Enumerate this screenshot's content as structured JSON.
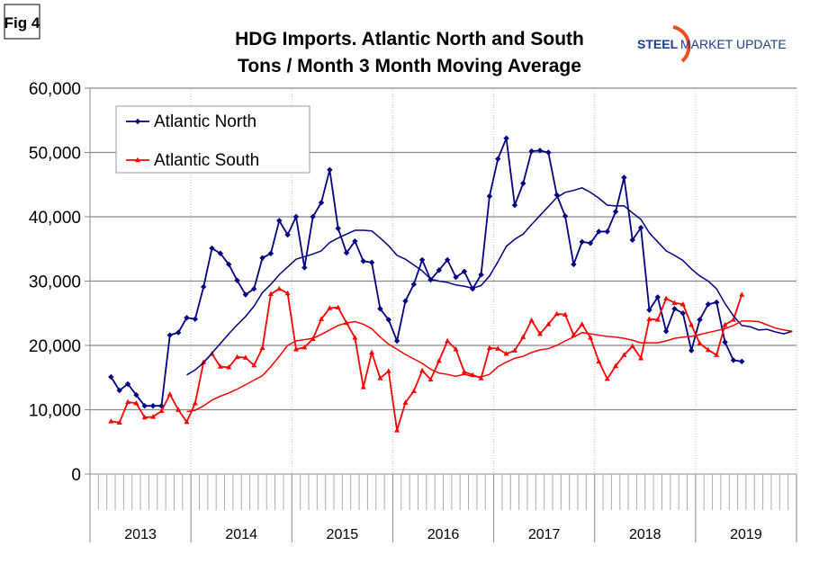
{
  "fig_label": "Fig 4",
  "logo": {
    "word1": "STEEL",
    "word2": "MARKET UPDATE",
    "arc_color": "#e8501e",
    "text_color": "#1b3d8f"
  },
  "chart_data": {
    "type": "line",
    "title": [
      "HDG Imports. Atlantic North and South",
      "Tons / Month 3 Month Moving Average"
    ],
    "xlabel": "",
    "ylabel": "",
    "x_unit": "month",
    "x_range": [
      "2013-01",
      "2019-12"
    ],
    "year_labels": [
      "2013",
      "2014",
      "2015",
      "2016",
      "2017",
      "2018",
      "2019"
    ],
    "ylim": [
      0,
      60000
    ],
    "y_ticks": [
      0,
      10000,
      20000,
      30000,
      40000,
      50000,
      60000
    ],
    "y_tick_labels": [
      "0",
      "10,000",
      "20,000",
      "30,000",
      "40,000",
      "50,000",
      "60,000"
    ],
    "grid": "horizontal",
    "legend": {
      "placement": "top-left",
      "entries": [
        "Atlantic North",
        "Atlantic South"
      ]
    },
    "series": [
      {
        "name": "Atlantic North",
        "color": "#000080",
        "marker": "diamond",
        "start": "2013-03",
        "values": [
          15100,
          13000,
          14000,
          12300,
          10600,
          10600,
          10600,
          21600,
          22000,
          24300,
          24100,
          29100,
          35100,
          34300,
          32600,
          30100,
          27900,
          28800,
          33600,
          34300,
          39400,
          37200,
          40000,
          32100,
          40000,
          42200,
          47300,
          38200,
          34400,
          36200,
          33100,
          32900,
          25700,
          24000,
          20700,
          26900,
          29500,
          33300,
          30200,
          31700,
          33300,
          30600,
          31500,
          28800,
          31000,
          43200,
          49000,
          52200,
          41800,
          45200,
          50200,
          50300,
          50000,
          43400,
          40100,
          32600,
          36100,
          35900,
          37700,
          37700,
          40800,
          46100,
          36400,
          38300,
          25500,
          27500,
          22200,
          25700,
          25000,
          19200,
          24000,
          26400,
          26700,
          20500,
          17700,
          17500
        ]
      },
      {
        "name": "Atlantic South",
        "color": "#ff0000",
        "marker": "triangle",
        "start": "2013-03",
        "values": [
          8200,
          8000,
          11200,
          11000,
          8800,
          8900,
          9800,
          12400,
          10000,
          8100,
          11000,
          17400,
          18700,
          16700,
          16600,
          18200,
          18100,
          16900,
          19600,
          28000,
          28800,
          28100,
          19400,
          19700,
          21000,
          24100,
          25800,
          25900,
          23500,
          21200,
          13500,
          18900,
          14900,
          16000,
          6800,
          11100,
          12900,
          16100,
          14700,
          17600,
          20700,
          19400,
          15900,
          15400,
          14900,
          19600,
          19500,
          18700,
          19200,
          21300,
          23900,
          21800,
          23300,
          24900,
          24800,
          21600,
          23300,
          21200,
          17500,
          14800,
          16800,
          18500,
          19900,
          18000,
          24100,
          24000,
          27300,
          26600,
          26400,
          23200,
          20300,
          19300,
          18500,
          23200,
          24000,
          27900
        ]
      },
      {
        "trend_of": "Atlantic North",
        "color": "#000080",
        "start": "2013-12",
        "values": [
          15400,
          16200,
          17300,
          18800,
          20300,
          21800,
          23200,
          24500,
          26100,
          28200,
          29500,
          31000,
          32200,
          33400,
          33800,
          34200,
          34700,
          36000,
          36700,
          37300,
          37900,
          37900,
          37800,
          36700,
          35500,
          34000,
          33400,
          32500,
          31600,
          30300,
          30000,
          29800,
          29400,
          29200,
          28900,
          29300,
          30800,
          33000,
          35400,
          36500,
          37300,
          38800,
          40200,
          41600,
          43000,
          43800,
          44100,
          44500,
          43800,
          42900,
          41800,
          41700,
          41700,
          40600,
          39600,
          37500,
          36100,
          34700,
          34000,
          33200,
          31900,
          30800,
          30000,
          28800,
          26500,
          24600,
          23100,
          22900,
          22400,
          22500,
          22100,
          21800,
          22200
        ]
      },
      {
        "trend_of": "Atlantic South",
        "color": "#ff0000",
        "start": "2013-12",
        "values": [
          9700,
          9900,
          10600,
          11500,
          12100,
          12600,
          13200,
          13900,
          14600,
          15300,
          16700,
          18300,
          20000,
          20700,
          20900,
          21100,
          21700,
          22400,
          23100,
          23500,
          23700,
          23300,
          22600,
          21300,
          20200,
          19400,
          18600,
          17900,
          17200,
          16300,
          15700,
          15500,
          15200,
          15500,
          15200,
          15100,
          15500,
          16700,
          17400,
          18000,
          18300,
          18900,
          19300,
          19500,
          20000,
          20700,
          21300,
          22000,
          21800,
          21600,
          21400,
          21300,
          21100,
          20800,
          20400,
          20400,
          20400,
          20700,
          21100,
          21300,
          21400,
          21700,
          22000,
          22300,
          22600,
          23100,
          23800,
          23800,
          23700,
          23200,
          22700,
          22400,
          22200
        ]
      }
    ]
  }
}
